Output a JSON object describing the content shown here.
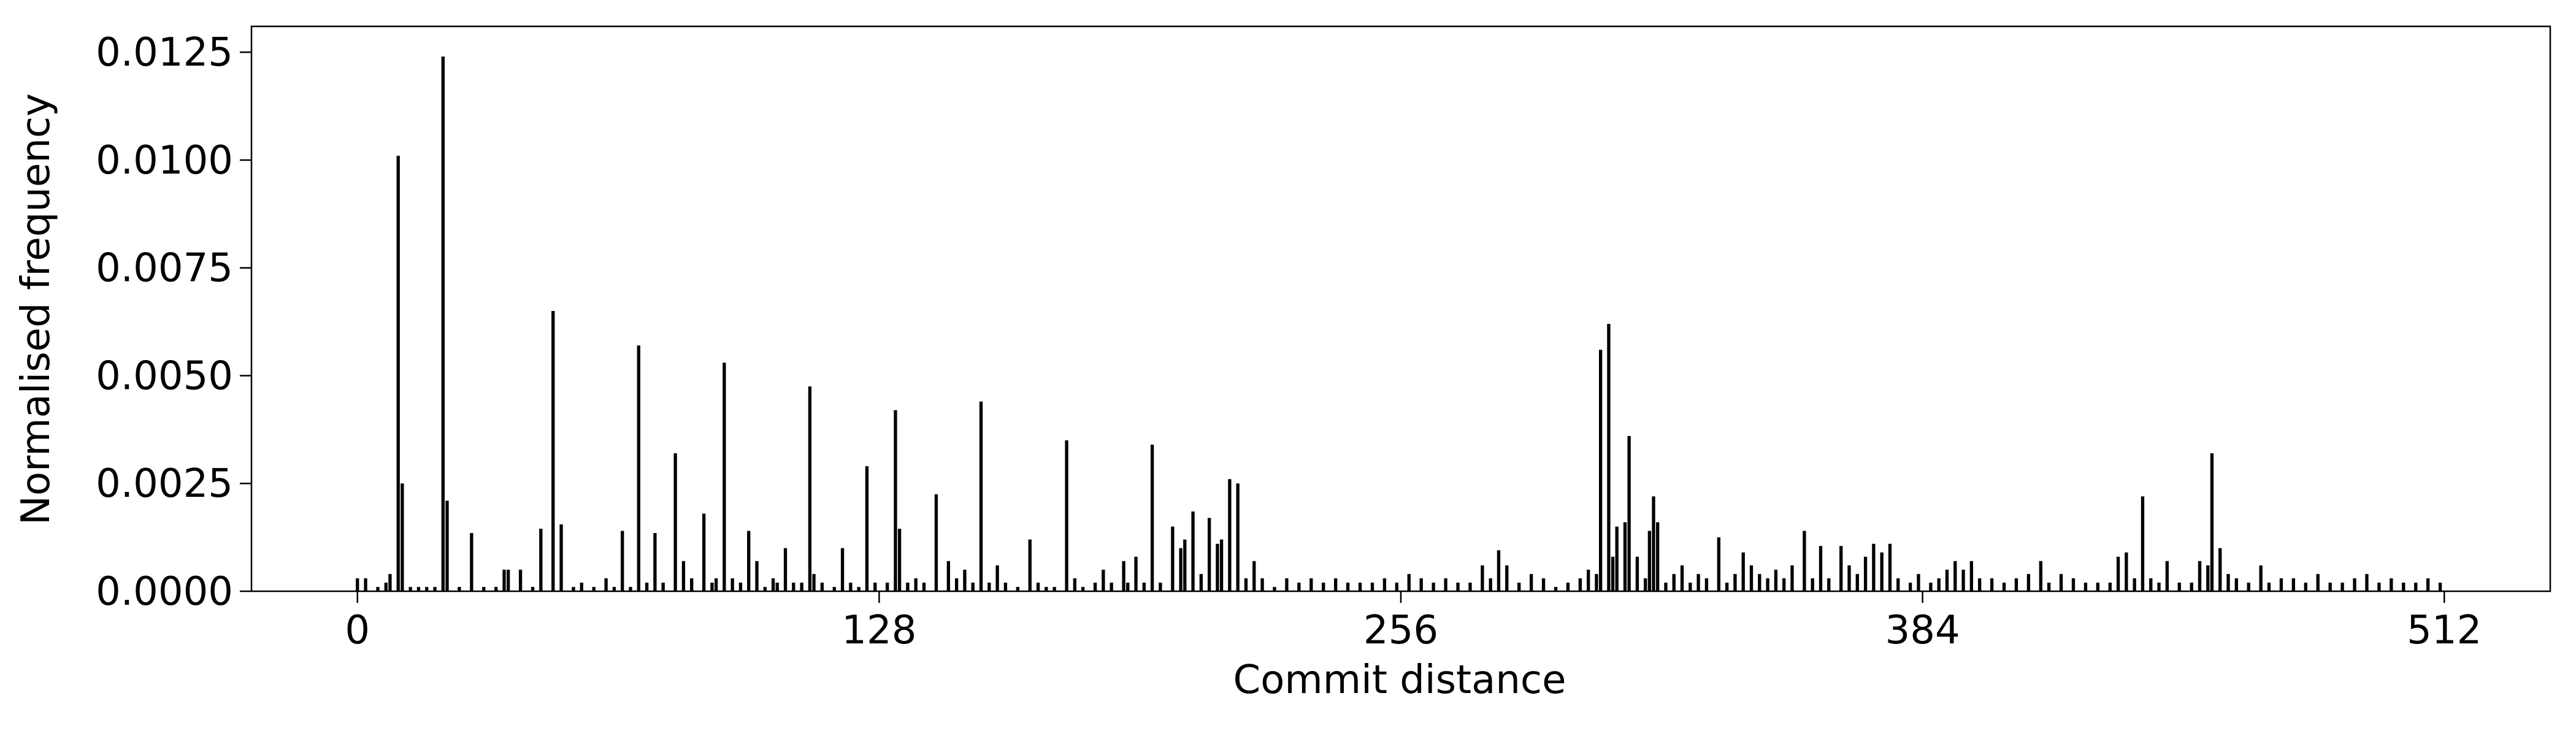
{
  "chart_data": {
    "type": "bar",
    "xlabel": "Commit distance",
    "ylabel": "Normalised frequency",
    "color": "#000000",
    "grid": false,
    "xlim": [
      -26,
      538
    ],
    "ylim": [
      0,
      0.0131
    ],
    "xticks": [
      0,
      128,
      256,
      384,
      512
    ],
    "yticks": [
      {
        "value": 0,
        "label": "0.0000"
      },
      {
        "value": 0.0025,
        "label": "0.0025"
      },
      {
        "value": 0.005,
        "label": "0.0050"
      },
      {
        "value": 0.0075,
        "label": "0.0075"
      },
      {
        "value": 0.01,
        "label": "0.0100"
      },
      {
        "value": 0.0125,
        "label": "0.0125"
      }
    ],
    "x": [
      0,
      2,
      5,
      7,
      8,
      10,
      11,
      13,
      15,
      17,
      19,
      21,
      22,
      25,
      28,
      31,
      34,
      36,
      37,
      40,
      43,
      45,
      48,
      50,
      53,
      55,
      58,
      61,
      63,
      65,
      67,
      69,
      71,
      73,
      75,
      78,
      80,
      82,
      85,
      87,
      88,
      90,
      92,
      94,
      96,
      98,
      100,
      102,
      103,
      105,
      107,
      109,
      111,
      112,
      114,
      117,
      119,
      121,
      123,
      125,
      127,
      130,
      132,
      133,
      135,
      137,
      139,
      142,
      145,
      147,
      149,
      151,
      153,
      155,
      157,
      159,
      162,
      165,
      167,
      169,
      171,
      174,
      176,
      178,
      181,
      183,
      185,
      188,
      189,
      191,
      193,
      195,
      197,
      200,
      202,
      203,
      205,
      207,
      209,
      211,
      212,
      214,
      216,
      218,
      220,
      222,
      225,
      228,
      231,
      234,
      237,
      240,
      243,
      246,
      249,
      252,
      255,
      258,
      261,
      264,
      267,
      270,
      273,
      276,
      278,
      280,
      282,
      285,
      288,
      291,
      294,
      297,
      300,
      302,
      304,
      305,
      307,
      308,
      309,
      311,
      312,
      314,
      316,
      317,
      318,
      319,
      321,
      323,
      325,
      327,
      329,
      331,
      334,
      336,
      338,
      340,
      342,
      344,
      346,
      348,
      350,
      352,
      355,
      357,
      359,
      361,
      364,
      366,
      368,
      370,
      372,
      374,
      376,
      378,
      381,
      383,
      386,
      388,
      390,
      392,
      394,
      396,
      398,
      401,
      404,
      407,
      410,
      413,
      415,
      418,
      421,
      424,
      427,
      430,
      432,
      434,
      436,
      438,
      440,
      442,
      444,
      447,
      450,
      452,
      454,
      455,
      457,
      459,
      461,
      464,
      467,
      469,
      472,
      475,
      478,
      481,
      484,
      487,
      490,
      493,
      496,
      499,
      502,
      505,
      508,
      511
    ],
    "values": [
      0.0003,
      0.0003,
      0.0001,
      0.0002,
      0.0004,
      0.0101,
      0.0025,
      0.0001,
      0.0001,
      0.0001,
      0.0001,
      0.0124,
      0.0021,
      0.0001,
      0.00135,
      0.0001,
      0.0001,
      0.0005,
      0.0005,
      0.0005,
      0.0001,
      0.00145,
      0.0065,
      0.00155,
      0.0001,
      0.0002,
      0.0001,
      0.0003,
      0.0001,
      0.0014,
      0.0001,
      0.0057,
      0.0002,
      0.00135,
      0.0002,
      0.0032,
      0.0007,
      0.0003,
      0.0018,
      0.0002,
      0.0003,
      0.0053,
      0.0003,
      0.0002,
      0.0014,
      0.0007,
      0.0001,
      0.0003,
      0.0002,
      0.001,
      0.0002,
      0.0002,
      0.00475,
      0.0004,
      0.0002,
      0.0001,
      0.001,
      0.0002,
      0.0001,
      0.0029,
      0.0002,
      0.0002,
      0.0042,
      0.00145,
      0.0002,
      0.0003,
      0.0002,
      0.00225,
      0.0007,
      0.0003,
      0.0005,
      0.0002,
      0.0044,
      0.0002,
      0.0006,
      0.0002,
      0.0001,
      0.0012,
      0.0002,
      0.0001,
      0.0001,
      0.0035,
      0.0003,
      0.0001,
      0.0002,
      0.0005,
      0.0002,
      0.0007,
      0.0002,
      0.0008,
      0.0002,
      0.0034,
      0.0002,
      0.0015,
      0.001,
      0.0012,
      0.00185,
      0.0004,
      0.0017,
      0.0011,
      0.0012,
      0.0026,
      0.0025,
      0.0003,
      0.0007,
      0.0003,
      0.0001,
      0.0003,
      0.0002,
      0.0003,
      0.0002,
      0.0003,
      0.0002,
      0.0002,
      0.0002,
      0.0003,
      0.0002,
      0.0004,
      0.0003,
      0.0002,
      0.0003,
      0.0002,
      0.0002,
      0.0006,
      0.0003,
      0.00095,
      0.0006,
      0.0002,
      0.0004,
      0.0003,
      0.0001,
      0.0002,
      0.0003,
      0.0005,
      0.0004,
      0.0056,
      0.0062,
      0.0008,
      0.0015,
      0.0016,
      0.0036,
      0.0008,
      0.0003,
      0.0014,
      0.0022,
      0.0016,
      0.0002,
      0.0004,
      0.0006,
      0.0002,
      0.0004,
      0.0003,
      0.00125,
      0.0002,
      0.0004,
      0.0009,
      0.0006,
      0.0004,
      0.0003,
      0.0005,
      0.0003,
      0.0006,
      0.0014,
      0.0003,
      0.00105,
      0.0003,
      0.00105,
      0.0006,
      0.0004,
      0.0008,
      0.0011,
      0.0009,
      0.0011,
      0.0003,
      0.0002,
      0.0004,
      0.0002,
      0.0003,
      0.0005,
      0.0007,
      0.0005,
      0.0007,
      0.0003,
      0.0003,
      0.0002,
      0.0003,
      0.0004,
      0.0007,
      0.0002,
      0.0004,
      0.0003,
      0.0002,
      0.0002,
      0.0002,
      0.0008,
      0.0009,
      0.0003,
      0.0022,
      0.0003,
      0.0002,
      0.0007,
      0.0002,
      0.0002,
      0.0007,
      0.0006,
      0.0032,
      0.001,
      0.0004,
      0.0003,
      0.0002,
      0.0006,
      0.0002,
      0.0003,
      0.0003,
      0.0002,
      0.0004,
      0.0002,
      0.0002,
      0.0003,
      0.0004,
      0.0002,
      0.0003,
      0.0002,
      0.0002,
      0.0003,
      0.0002
    ]
  }
}
